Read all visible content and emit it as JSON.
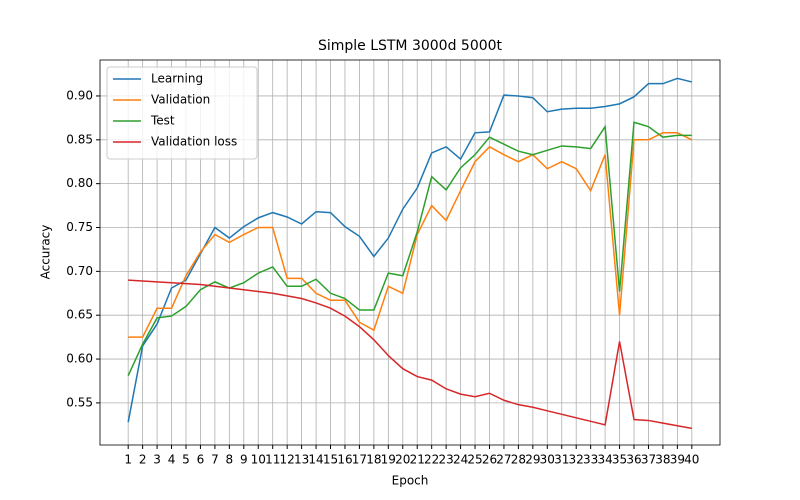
{
  "chart_data": {
    "type": "line",
    "title": "Simple LSTM 3000d 5000t",
    "x_label": "Epoch",
    "y_label": "Accuracy",
    "x": [
      1,
      2,
      3,
      4,
      5,
      6,
      7,
      8,
      9,
      10,
      11,
      12,
      13,
      14,
      15,
      16,
      17,
      18,
      19,
      20,
      21,
      22,
      23,
      24,
      25,
      26,
      27,
      28,
      29,
      30,
      31,
      32,
      33,
      34,
      35,
      36,
      37,
      38,
      39,
      40
    ],
    "series": [
      {
        "name": "Learning",
        "color": "#1f77b4",
        "values": [
          0.528,
          0.615,
          0.64,
          0.681,
          0.69,
          0.72,
          0.75,
          0.738,
          0.751,
          0.761,
          0.767,
          0.762,
          0.754,
          0.768,
          0.767,
          0.751,
          0.74,
          0.717,
          0.738,
          0.771,
          0.795,
          0.835,
          0.842,
          0.828,
          0.858,
          0.859,
          0.901,
          0.9,
          0.898,
          0.882,
          0.885,
          0.886,
          0.886,
          0.888,
          0.891,
          0.899,
          0.914,
          0.914,
          0.92,
          0.916
        ]
      },
      {
        "name": "Validation",
        "color": "#ff7f0e",
        "values": [
          0.625,
          0.625,
          0.658,
          0.658,
          0.695,
          0.722,
          0.742,
          0.733,
          0.742,
          0.75,
          0.75,
          0.692,
          0.692,
          0.675,
          0.667,
          0.667,
          0.642,
          0.633,
          0.683,
          0.675,
          0.742,
          0.775,
          0.758,
          0.792,
          0.825,
          0.842,
          0.833,
          0.825,
          0.833,
          0.817,
          0.825,
          0.817,
          0.792,
          0.833,
          0.65,
          0.85,
          0.85,
          0.858,
          0.858,
          0.85
        ]
      },
      {
        "name": "Test",
        "color": "#2ca02c",
        "values": [
          0.581,
          0.617,
          0.647,
          0.649,
          0.66,
          0.679,
          0.688,
          0.681,
          0.687,
          0.698,
          0.705,
          0.683,
          0.683,
          0.691,
          0.675,
          0.669,
          0.656,
          0.656,
          0.698,
          0.695,
          0.745,
          0.808,
          0.793,
          0.818,
          0.833,
          0.853,
          0.845,
          0.837,
          0.833,
          0.838,
          0.843,
          0.842,
          0.84,
          0.865,
          0.677,
          0.87,
          0.865,
          0.853,
          0.855,
          0.855
        ]
      },
      {
        "name": "Validation loss",
        "color": "#d62728",
        "values": [
          0.69,
          0.689,
          0.688,
          0.687,
          0.686,
          0.685,
          0.683,
          0.681,
          0.679,
          0.677,
          0.675,
          0.672,
          0.669,
          0.664,
          0.658,
          0.649,
          0.637,
          0.622,
          0.604,
          0.589,
          0.58,
          0.576,
          0.566,
          0.56,
          0.557,
          0.561,
          0.553,
          0.548,
          0.545,
          0.541,
          0.537,
          0.533,
          0.529,
          0.525,
          0.62,
          0.531,
          0.53,
          0.527,
          0.524,
          0.521
        ]
      }
    ],
    "xlim": [
      -0.95,
      41.95
    ],
    "ylim": [
      0.502,
      0.941
    ],
    "xticks": [
      1,
      2,
      3,
      4,
      5,
      6,
      7,
      8,
      9,
      10,
      11,
      12,
      13,
      14,
      15,
      16,
      17,
      18,
      19,
      20,
      21,
      22,
      23,
      24,
      25,
      26,
      27,
      28,
      29,
      30,
      31,
      32,
      33,
      34,
      35,
      36,
      37,
      38,
      39,
      40
    ],
    "yticks": [
      0.55,
      {
        "value": 0.6,
        "label": "0.60"
      },
      0.65,
      {
        "value": 0.7,
        "label": "0.70"
      },
      0.75,
      {
        "value": 0.8,
        "label": "0.80"
      },
      0.85,
      {
        "value": 0.9,
        "label": "0.90"
      }
    ],
    "grid": true,
    "legend": "upper left"
  }
}
